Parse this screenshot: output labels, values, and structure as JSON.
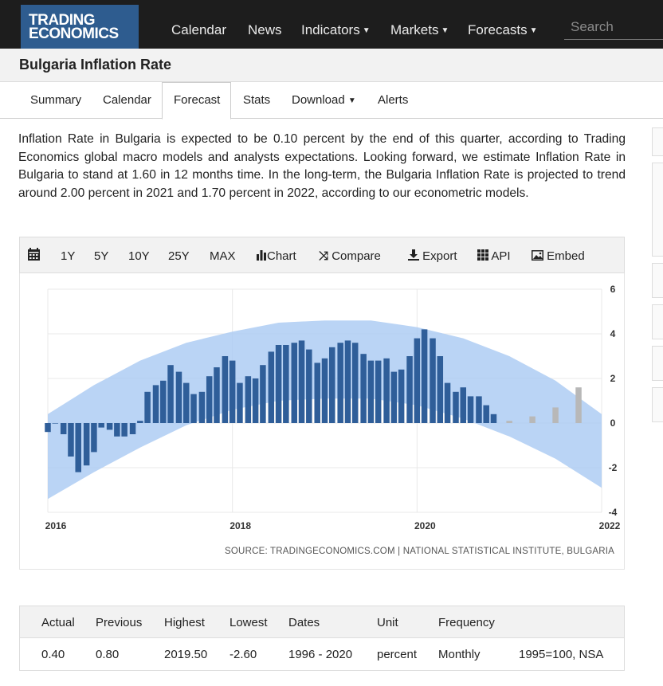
{
  "nav": {
    "logo_line1": "TRADING",
    "logo_line2": "ECONOMICS",
    "items": [
      "Calendar",
      "News",
      "Indicators",
      "Markets",
      "Forecasts"
    ],
    "search_placeholder": "Search"
  },
  "page": {
    "title": "Bulgaria Inflation Rate"
  },
  "tabs": [
    "Summary",
    "Calendar",
    "Forecast",
    "Stats",
    "Download",
    "Alerts"
  ],
  "description": "Inflation Rate in Bulgaria is expected to be 0.10 percent by the end of this quarter, according to Trading Economics global macro models and analysts expectations. Looking forward, we estimate Inflation Rate in Bulgaria to stand at 1.60 in 12 months time. In the long-term, the Bulgaria Inflation Rate is projected to trend around 2.00 percent in 2021 and 1.70 percent in 2022, according to our econometric models.",
  "toolbar": {
    "ranges": [
      "1Y",
      "5Y",
      "10Y",
      "25Y",
      "MAX"
    ],
    "chart": "Chart",
    "compare": "Compare",
    "export": "Export",
    "api": "API",
    "embed": "Embed"
  },
  "chart_data": {
    "type": "bar",
    "x_tick_labels": [
      "2016",
      "2018",
      "2020",
      "2022"
    ],
    "y_tick_labels": [
      "6",
      "4",
      "2",
      "0",
      "-2",
      "-4"
    ],
    "ylim": [
      -4,
      6
    ],
    "xlim": [
      2016.0,
      2022.0
    ],
    "grid": true,
    "colors": {
      "actual": "#2f5e99",
      "forecast": "#b8b8b8",
      "band": "#a9c9f2"
    },
    "actual": {
      "x": [
        2016.0,
        2016.08,
        2016.17,
        2016.25,
        2016.33,
        2016.42,
        2016.5,
        2016.58,
        2016.67,
        2016.75,
        2016.83,
        2016.92,
        2017.0,
        2017.08,
        2017.17,
        2017.25,
        2017.33,
        2017.42,
        2017.5,
        2017.58,
        2017.67,
        2017.75,
        2017.83,
        2017.92,
        2018.0,
        2018.08,
        2018.17,
        2018.25,
        2018.33,
        2018.42,
        2018.5,
        2018.58,
        2018.67,
        2018.75,
        2018.83,
        2018.92,
        2019.0,
        2019.08,
        2019.17,
        2019.25,
        2019.33,
        2019.42,
        2019.5,
        2019.58,
        2019.67,
        2019.75,
        2019.83,
        2019.92,
        2020.0,
        2020.08,
        2020.17,
        2020.25,
        2020.33,
        2020.42,
        2020.5,
        2020.58,
        2020.67,
        2020.75,
        2020.83
      ],
      "values": [
        -0.4,
        0.0,
        -0.5,
        -1.5,
        -2.2,
        -1.9,
        -1.3,
        -0.2,
        -0.3,
        -0.6,
        -0.6,
        -0.5,
        0.1,
        1.4,
        1.7,
        1.9,
        2.6,
        2.3,
        1.8,
        1.3,
        1.4,
        2.1,
        2.5,
        3.0,
        2.8,
        1.8,
        2.1,
        2.0,
        2.6,
        3.2,
        3.5,
        3.5,
        3.6,
        3.7,
        3.3,
        2.7,
        2.9,
        3.4,
        3.6,
        3.7,
        3.6,
        3.1,
        2.8,
        2.8,
        2.9,
        2.3,
        2.4,
        3.0,
        3.8,
        4.2,
        3.8,
        3.0,
        1.8,
        1.4,
        1.6,
        1.2,
        1.2,
        0.8,
        0.4
      ]
    },
    "forecast": {
      "x": [
        2021.0,
        2021.25,
        2021.5,
        2021.75
      ],
      "values": [
        0.1,
        0.3,
        0.7,
        1.6
      ]
    },
    "band": {
      "x": [
        2016.0,
        2016.5,
        2017.0,
        2017.5,
        2018.0,
        2018.5,
        2019.0,
        2019.5,
        2020.0,
        2020.5,
        2021.0,
        2021.5,
        2022.0
      ],
      "upper": [
        0.4,
        1.7,
        2.8,
        3.6,
        4.1,
        4.5,
        4.6,
        4.6,
        4.3,
        3.8,
        3.0,
        1.9,
        0.4
      ],
      "lower": [
        -3.4,
        -2.2,
        -1.1,
        -0.1,
        0.6,
        1.0,
        1.1,
        1.1,
        0.8,
        0.2,
        -0.6,
        -1.6,
        -2.9
      ]
    },
    "source": "SOURCE: TRADINGECONOMICS.COM | NATIONAL STATISTICAL INSTITUTE, BULGARIA"
  },
  "stats": {
    "headers": [
      "Actual",
      "Previous",
      "Highest",
      "Lowest",
      "Dates",
      "Unit",
      "Frequency",
      ""
    ],
    "values": [
      "0.40",
      "0.80",
      "2019.50",
      "-2.60",
      "1996 - 2020",
      "percent",
      "Monthly",
      "1995=100, NSA"
    ]
  }
}
